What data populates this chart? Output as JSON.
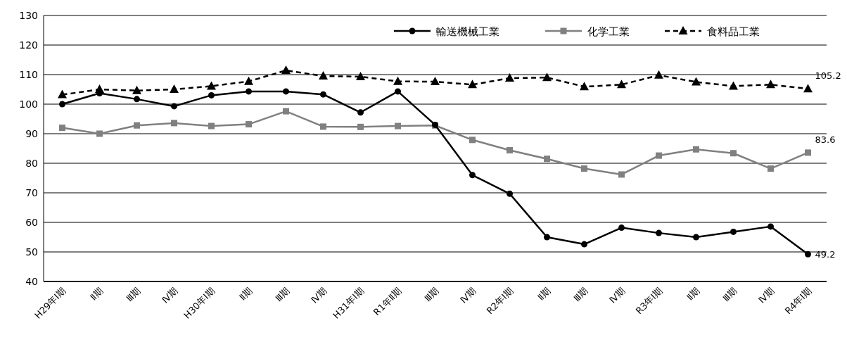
{
  "chart_data": {
    "type": "line",
    "categories": [
      "H29年Ⅰ期",
      "Ⅱ期",
      "Ⅲ期",
      "Ⅳ期",
      "H30年Ⅰ期",
      "Ⅱ期",
      "Ⅲ期",
      "Ⅳ期",
      "H31年Ⅰ期",
      "R1年Ⅱ期",
      "Ⅲ期",
      "Ⅳ期",
      "R2年Ⅰ期",
      "Ⅱ期",
      "Ⅲ期",
      "Ⅳ期",
      "R3年Ⅰ期",
      "Ⅱ期",
      "Ⅲ期",
      "Ⅳ期",
      "R4年Ⅰ期"
    ],
    "series": [
      {
        "name": "輸送機械工業",
        "color": "#000000",
        "marker": "circle",
        "line_style": "solid",
        "values": [
          100,
          103.7,
          101.7,
          99.3,
          103,
          104.3,
          104.3,
          103.3,
          97.2,
          104.3,
          93,
          76,
          69.7,
          55,
          52.6,
          58.2,
          56.4,
          55,
          56.8,
          58.6,
          49.2
        ],
        "value_labels": [
          null,
          null,
          null,
          null,
          null,
          null,
          null,
          null,
          null,
          null,
          null,
          null,
          null,
          null,
          null,
          null,
          null,
          null,
          null,
          null,
          "49.2"
        ]
      },
      {
        "name": "化学工業",
        "color": "#808080",
        "marker": "square",
        "line_style": "solid",
        "values": [
          92,
          90,
          92.8,
          93.6,
          92.6,
          93.2,
          97.6,
          92.4,
          92.3,
          92.6,
          92.8,
          87.9,
          84.4,
          81.5,
          78.2,
          76.2,
          82.6,
          84.7,
          83.4,
          78.2,
          83.6
        ],
        "value_labels": [
          null,
          null,
          null,
          null,
          null,
          null,
          null,
          null,
          null,
          null,
          null,
          null,
          null,
          null,
          null,
          null,
          null,
          null,
          null,
          null,
          "83.6"
        ]
      },
      {
        "name": "食料品工業",
        "color": "#000000",
        "marker": "triangle",
        "line_style": "dashed",
        "values": [
          103.2,
          105,
          104.6,
          105,
          106.1,
          107.7,
          111.4,
          109.5,
          109.3,
          107.7,
          107.6,
          106.6,
          108.8,
          109,
          105.9,
          106.6,
          109.8,
          107.5,
          106.1,
          106.6,
          105.2
        ],
        "value_labels": [
          null,
          null,
          null,
          null,
          null,
          null,
          null,
          null,
          null,
          null,
          null,
          null,
          null,
          null,
          null,
          null,
          null,
          null,
          null,
          null,
          "105.2"
        ]
      }
    ],
    "ylim": [
      40,
      130
    ],
    "yticks": [
      40,
      50,
      60,
      70,
      80,
      90,
      100,
      110,
      120,
      130
    ],
    "grid": "y",
    "legend": "top right"
  }
}
